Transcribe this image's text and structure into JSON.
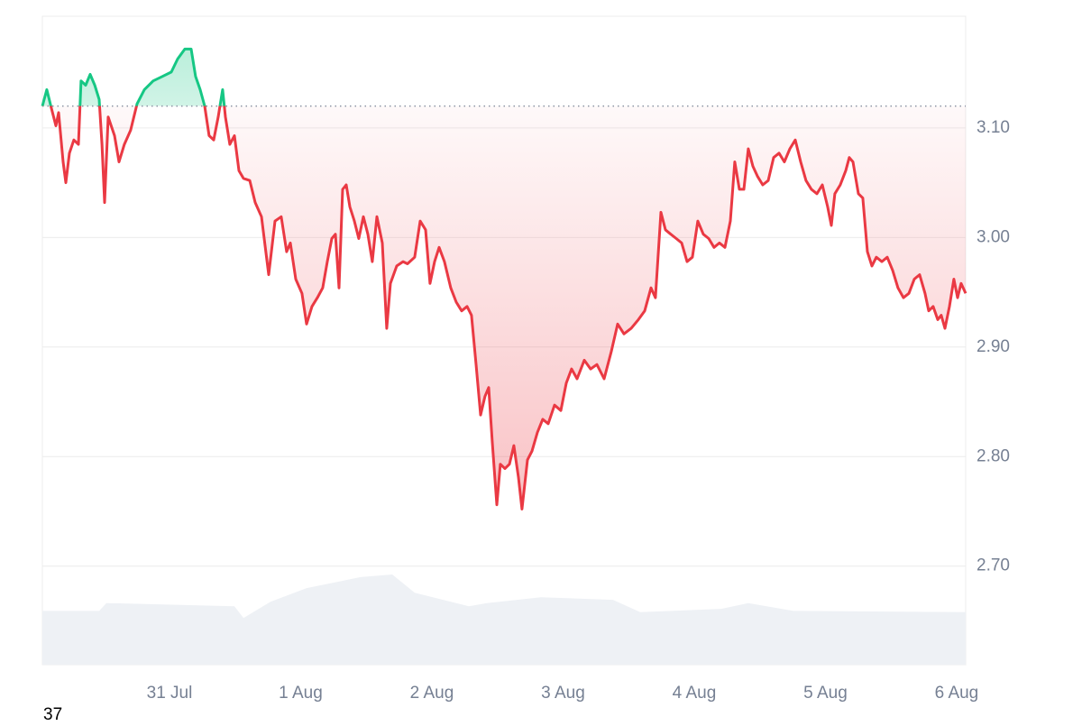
{
  "chart_data": {
    "type": "line",
    "x": [
      -0.969,
      -0.935,
      -0.9,
      -0.866,
      -0.845,
      -0.811,
      -0.79,
      -0.763,
      -0.729,
      -0.694,
      -0.674,
      -0.639,
      -0.605,
      -0.57,
      -0.536,
      -0.515,
      -0.495,
      -0.467,
      -0.419,
      -0.385,
      -0.344,
      -0.296,
      -0.247,
      -0.192,
      -0.124,
      -0.055,
      0.014,
      0.062,
      0.117,
      0.165,
      0.199,
      0.234,
      0.268,
      0.302,
      0.337,
      0.371,
      0.405,
      0.426,
      0.46,
      0.495,
      0.529,
      0.564,
      0.612,
      0.653,
      0.701,
      0.756,
      0.804,
      0.852,
      0.893,
      0.921,
      0.962,
      1.01,
      1.045,
      1.086,
      1.127,
      1.168,
      1.203,
      1.237,
      1.265,
      1.292,
      1.32,
      1.347,
      1.375,
      1.409,
      1.443,
      1.478,
      1.512,
      1.546,
      1.581,
      1.622,
      1.656,
      1.684,
      1.732,
      1.78,
      1.814,
      1.869,
      1.911,
      1.952,
      1.986,
      2.021,
      2.055,
      2.096,
      2.144,
      2.186,
      2.227,
      2.268,
      2.302,
      2.337,
      2.371,
      2.405,
      2.433,
      2.46,
      2.495,
      2.522,
      2.557,
      2.591,
      2.625,
      2.66,
      2.687,
      2.729,
      2.763,
      2.804,
      2.845,
      2.887,
      2.935,
      2.983,
      3.024,
      3.065,
      3.107,
      3.162,
      3.21,
      3.258,
      3.313,
      3.368,
      3.416,
      3.464,
      3.519,
      3.574,
      3.622,
      3.67,
      3.704,
      3.746,
      3.78,
      3.821,
      3.863,
      3.904,
      3.945,
      3.986,
      4.027,
      4.069,
      4.11,
      4.151,
      4.192,
      4.234,
      4.275,
      4.309,
      4.344,
      4.378,
      4.412,
      4.447,
      4.481,
      4.522,
      4.564,
      4.605,
      4.646,
      4.687,
      4.729,
      4.77,
      4.811,
      4.852,
      4.893,
      4.935,
      4.976,
      5.017,
      5.045,
      5.072,
      5.113,
      5.155,
      5.182,
      5.21,
      5.251,
      5.285,
      5.32,
      5.354,
      5.388,
      5.43,
      5.471,
      5.512,
      5.553,
      5.595,
      5.636,
      5.677,
      5.718,
      5.759,
      5.787,
      5.821,
      5.856,
      5.883,
      5.911,
      5.945,
      5.979,
      6.007,
      6.034,
      6.069
    ],
    "series": [
      {
        "color": "#ea3943",
        "above_color": "#16c784",
        "values": [
          3.12,
          3.135,
          3.118,
          3.102,
          3.114,
          3.069,
          3.05,
          3.077,
          3.089,
          3.085,
          3.143,
          3.139,
          3.149,
          3.139,
          3.126,
          3.085,
          3.032,
          3.11,
          3.093,
          3.069,
          3.085,
          3.098,
          3.122,
          3.135,
          3.143,
          3.147,
          3.151,
          3.163,
          3.172,
          3.172,
          3.147,
          3.135,
          3.12,
          3.093,
          3.089,
          3.11,
          3.135,
          3.11,
          3.085,
          3.093,
          3.061,
          3.054,
          3.052,
          3.032,
          3.019,
          2.966,
          3.015,
          3.019,
          2.987,
          2.995,
          2.962,
          2.949,
          2.921,
          2.937,
          2.945,
          2.954,
          2.978,
          2.999,
          3.003,
          2.954,
          3.044,
          3.048,
          3.028,
          3.015,
          2.999,
          3.019,
          3.003,
          2.978,
          3.019,
          2.995,
          2.917,
          2.958,
          2.974,
          2.978,
          2.976,
          2.982,
          3.015,
          3.007,
          2.958,
          2.978,
          2.991,
          2.978,
          2.954,
          2.941,
          2.933,
          2.937,
          2.929,
          2.884,
          2.838,
          2.855,
          2.863,
          2.814,
          2.756,
          2.793,
          2.789,
          2.793,
          2.81,
          2.781,
          2.752,
          2.797,
          2.805,
          2.822,
          2.834,
          2.83,
          2.847,
          2.842,
          2.867,
          2.88,
          2.871,
          2.888,
          2.88,
          2.884,
          2.871,
          2.896,
          2.921,
          2.912,
          2.917,
          2.925,
          2.933,
          2.954,
          2.945,
          3.023,
          3.007,
          3.003,
          2.999,
          2.995,
          2.978,
          2.982,
          3.015,
          3.003,
          2.999,
          2.991,
          2.995,
          2.991,
          3.015,
          3.069,
          3.044,
          3.044,
          3.081,
          3.065,
          3.056,
          3.048,
          3.052,
          3.073,
          3.077,
          3.069,
          3.081,
          3.089,
          3.069,
          3.052,
          3.044,
          3.04,
          3.048,
          3.028,
          3.011,
          3.04,
          3.048,
          3.061,
          3.073,
          3.069,
          3.04,
          3.036,
          2.987,
          2.974,
          2.982,
          2.978,
          2.982,
          2.97,
          2.954,
          2.945,
          2.949,
          2.962,
          2.966,
          2.949,
          2.933,
          2.937,
          2.925,
          2.929,
          2.917,
          2.937,
          2.962,
          2.945,
          2.958,
          2.949
        ]
      }
    ],
    "baseline": 3.12,
    "volume": {
      "color": "#eef1f5",
      "axis": "y2",
      "x": [
        -0.969,
        -0.536,
        -0.481,
        0.495,
        0.564,
        0.77,
        1.045,
        1.457,
        1.698,
        1.869,
        2.282,
        2.419,
        2.832,
        3.381,
        3.588,
        4.206,
        4.412,
        4.756,
        6.069
      ],
      "values": [
        8.3,
        8.3,
        9.5,
        9.0,
        7.2,
        9.7,
        11.8,
        13.5,
        13.9,
        11.1,
        9.0,
        9.5,
        10.4,
        10.0,
        8.1,
        8.6,
        9.5,
        8.3,
        8.1
      ]
    },
    "xlim": [
      -0.969,
      6.069
    ],
    "xticks": [
      {
        "value": 0,
        "label": "31 Jul"
      },
      {
        "value": 1,
        "label": "1 Aug"
      },
      {
        "value": 2,
        "label": "2 Aug"
      },
      {
        "value": 3,
        "label": "3 Aug"
      },
      {
        "value": 4,
        "label": "4 Aug"
      },
      {
        "value": 5,
        "label": "5 Aug"
      },
      {
        "value": 6,
        "label": "6 Aug"
      }
    ],
    "ylim": [
      2.61,
      3.202
    ],
    "yticks": [
      {
        "value": 2.7,
        "label": "2.70"
      },
      {
        "value": 2.8,
        "label": "2.80"
      },
      {
        "value": 2.9,
        "label": "2.90"
      },
      {
        "value": 3.0,
        "label": "3.00"
      },
      {
        "value": 3.1,
        "label": "3.10"
      }
    ],
    "y2lim": [
      0,
      100
    ],
    "grid": true,
    "footnote": "37"
  }
}
